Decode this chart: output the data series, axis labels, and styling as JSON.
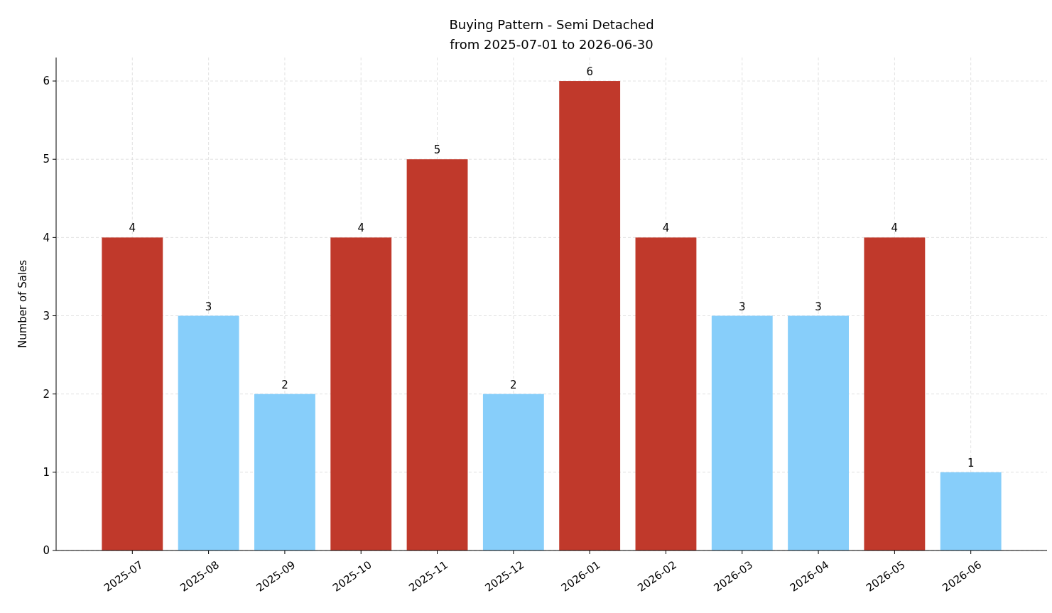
{
  "chart_data": {
    "type": "bar",
    "title": "Buying Pattern - Semi Detached\nfrom 2025-07-01 to 2026-06-30",
    "ylabel": "Number of Sales",
    "categories": [
      "2025-07",
      "2025-08",
      "2025-09",
      "2025-10",
      "2025-11",
      "2025-12",
      "2026-01",
      "2026-02",
      "2026-03",
      "2026-04",
      "2026-05",
      "2026-06"
    ],
    "values": [
      4,
      3,
      2,
      4,
      5,
      2,
      6,
      4,
      3,
      3,
      4,
      1
    ],
    "colors": [
      "#c0392b",
      "#87cefa",
      "#87cefa",
      "#c0392b",
      "#c0392b",
      "#87cefa",
      "#c0392b",
      "#c0392b",
      "#87cefa",
      "#87cefa",
      "#c0392b",
      "#87cefa"
    ],
    "ylim": [
      0,
      6.3
    ],
    "yticks": [
      0,
      1,
      2,
      3,
      4,
      5,
      6
    ],
    "grid": true,
    "data_labels": true
  }
}
